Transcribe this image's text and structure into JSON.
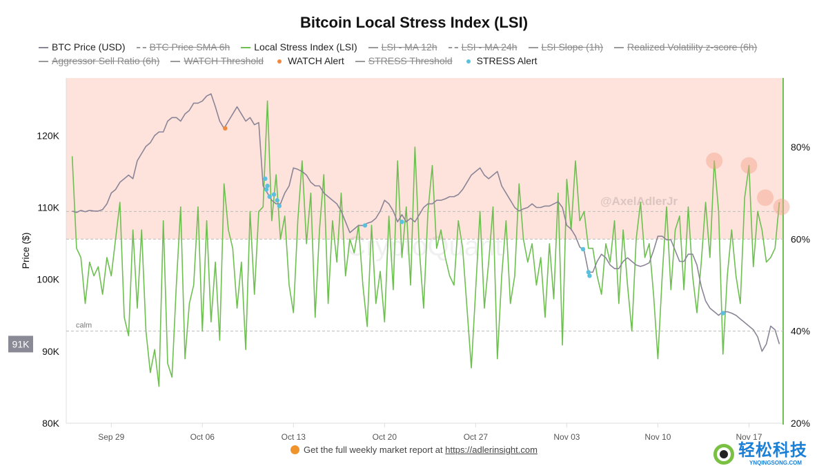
{
  "title": "Bitcoin Local Stress Index (LSI)",
  "legend": [
    {
      "label": "BTC Price (USD)",
      "type": "line",
      "color": "#8a8496",
      "hidden": false
    },
    {
      "label": "BTC Price SMA 6h",
      "type": "dash",
      "color": "#999999",
      "hidden": true
    },
    {
      "label": "Local Stress Index (LSI)",
      "type": "line",
      "color": "#6dbf4f",
      "hidden": false
    },
    {
      "label": "LSI - MA 12h",
      "type": "line",
      "color": "#999999",
      "hidden": true
    },
    {
      "label": "LSI - MA 24h",
      "type": "dash",
      "color": "#999999",
      "hidden": true
    },
    {
      "label": "LSI Slope (1h)",
      "type": "line",
      "color": "#999999",
      "hidden": true
    },
    {
      "label": "Realized Volatility z-score (6h)",
      "type": "line",
      "color": "#999999",
      "hidden": true
    },
    {
      "label": "Aggressor Sell Ratio (6h)",
      "type": "line",
      "color": "#999999",
      "hidden": true
    },
    {
      "label": "WATCH Threshold",
      "type": "line",
      "color": "#999999",
      "hidden": true
    },
    {
      "label": "WATCH Alert",
      "type": "dot",
      "color": "#f0883e",
      "hidden": false
    },
    {
      "label": "STRESS Threshold",
      "type": "line",
      "color": "#999999",
      "hidden": true
    },
    {
      "label": "STRESS Alert",
      "type": "dot",
      "color": "#5bc0de",
      "hidden": false
    }
  ],
  "chart_data": {
    "type": "line",
    "title": "Bitcoin Local Stress Index (LSI)",
    "ylabel": "Price ($)",
    "y_left": {
      "ticks": [
        "80K",
        "90K",
        "100K",
        "110K",
        "120K"
      ],
      "tick_values": [
        80,
        90,
        100,
        110,
        120
      ],
      "range": [
        80,
        128
      ],
      "unit": "K USD"
    },
    "y_right": {
      "ticks": [
        "20%",
        "40%",
        "60%",
        "80%"
      ],
      "tick_values": [
        20,
        40,
        60,
        80
      ],
      "range": [
        20,
        95
      ]
    },
    "x_ticks": [
      "Sep 29",
      "Oct 06",
      "Oct 13",
      "Oct 20",
      "Oct 27",
      "Nov 03",
      "Nov 10",
      "Nov 17"
    ],
    "xlim": [
      "Sep 25 13:00",
      "Nov 19 15:00"
    ],
    "sample_hours": [
      0,
      8,
      16
    ],
    "grid": false,
    "colors": {
      "price": "#8a8496",
      "lsi": "#6dbf4f",
      "watch": "#f0883e",
      "stress": "#5bc0de",
      "zone": "#fde3dc"
    },
    "stress_zone_from_pct": 60,
    "threshold_lines_pct": [
      66,
      60
    ],
    "calm": {
      "label": "calm",
      "pct": 40
    },
    "last_price_label": "91K",
    "days": [
      {
        "d": "Sep 26",
        "price": [
          109.5,
          109.3,
          109.6
        ],
        "lsi": [
          78,
          58,
          56
        ]
      },
      {
        "d": "Sep 27",
        "price": [
          109.4,
          109.6,
          109.5
        ],
        "lsi": [
          46,
          55,
          52
        ]
      },
      {
        "d": "Sep 28",
        "price": [
          109.5,
          109.7,
          110.5
        ],
        "lsi": [
          54,
          48,
          56
        ]
      },
      {
        "d": "Sep 29",
        "price": [
          112,
          112.5,
          113.5
        ],
        "lsi": [
          52,
          60,
          68
        ]
      },
      {
        "d": "Sep 30",
        "price": [
          114,
          114.5,
          114
        ],
        "lsi": [
          43,
          39,
          62
        ]
      },
      {
        "d": "Oct 01",
        "price": [
          116.5,
          117.5,
          118.5
        ],
        "lsi": [
          45,
          62,
          40
        ]
      },
      {
        "d": "Oct 02",
        "price": [
          119,
          120,
          120.5
        ],
        "lsi": [
          31,
          36,
          28
        ]
      },
      {
        "d": "Oct 03",
        "price": [
          120.5,
          122,
          122.5
        ],
        "lsi": [
          64,
          33,
          30
        ]
      },
      {
        "d": "Oct 04",
        "price": [
          122.5,
          122,
          123
        ],
        "lsi": [
          50,
          67,
          34
        ]
      },
      {
        "d": "Oct 05",
        "price": [
          123.5,
          124.5,
          124.5
        ],
        "lsi": [
          46,
          50,
          67
        ]
      },
      {
        "d": "Oct 06",
        "price": [
          124.8,
          125.5,
          125.8
        ],
        "lsi": [
          40,
          64,
          42
        ]
      },
      {
        "d": "Oct 07",
        "price": [
          124,
          122,
          121
        ],
        "lsi": [
          55,
          38,
          72
        ]
      },
      {
        "d": "Oct 08",
        "price": [
          122,
          123,
          124
        ],
        "lsi": [
          62,
          58,
          45
        ]
      },
      {
        "d": "Oct 09",
        "price": [
          123,
          122,
          122.5
        ],
        "lsi": [
          55,
          36,
          66
        ]
      },
      {
        "d": "Oct 10",
        "price": [
          121.5,
          121.8,
          113
        ],
        "lsi": [
          48,
          66,
          67
        ]
      },
      {
        "d": "Oct 11",
        "price": [
          112,
          111,
          110.5
        ],
        "lsi": [
          90,
          64,
          74
        ]
      },
      {
        "d": "Oct 12",
        "price": [
          110.5,
          112,
          113
        ],
        "lsi": [
          60,
          65,
          50
        ]
      },
      {
        "d": "Oct 13",
        "price": [
          115.5,
          115.3,
          115
        ],
        "lsi": [
          44,
          64,
          77
        ]
      },
      {
        "d": "Oct 14",
        "price": [
          114.5,
          113.5,
          113
        ],
        "lsi": [
          59,
          70,
          43
        ]
      },
      {
        "d": "Oct 15",
        "price": [
          113,
          112,
          111.5
        ],
        "lsi": [
          62,
          74,
          46
        ]
      },
      {
        "d": "Oct 16",
        "price": [
          111,
          110.5,
          109.5
        ],
        "lsi": [
          64,
          55,
          70
        ]
      },
      {
        "d": "Oct 17",
        "price": [
          108,
          106.5,
          107
        ],
        "lsi": [
          52,
          60,
          57
        ]
      },
      {
        "d": "Oct 18",
        "price": [
          107.5,
          107.5,
          107.8
        ],
        "lsi": [
          63,
          50,
          41
        ]
      },
      {
        "d": "Oct 19",
        "price": [
          108,
          108.5,
          109.5
        ],
        "lsi": [
          63,
          46,
          53
        ]
      },
      {
        "d": "Oct 20",
        "price": [
          111,
          110.5,
          109.5
        ],
        "lsi": [
          42,
          65,
          49
        ]
      },
      {
        "d": "Oct 21",
        "price": [
          108,
          109,
          108
        ],
        "lsi": [
          77,
          56,
          67
        ]
      },
      {
        "d": "Oct 22",
        "price": [
          108.5,
          108,
          109
        ],
        "lsi": [
          50,
          80,
          58
        ]
      },
      {
        "d": "Oct 23",
        "price": [
          110,
          110.5,
          110.5
        ],
        "lsi": [
          45,
          66,
          76
        ]
      },
      {
        "d": "Oct 24",
        "price": [
          111,
          111,
          111.2
        ],
        "lsi": [
          58,
          62,
          56
        ]
      },
      {
        "d": "Oct 25",
        "price": [
          111.5,
          111.5,
          111.8
        ],
        "lsi": [
          52,
          50,
          64
        ]
      },
      {
        "d": "Oct 26",
        "price": [
          112.5,
          113.5,
          114.5
        ],
        "lsi": [
          58,
          45,
          32
        ]
      },
      {
        "d": "Oct 27",
        "price": [
          115,
          115.5,
          114.5
        ],
        "lsi": [
          49,
          66,
          45
        ]
      },
      {
        "d": "Oct 28",
        "price": [
          114,
          114.5,
          115
        ],
        "lsi": [
          55,
          67,
          34
        ]
      },
      {
        "d": "Oct 29",
        "price": [
          113,
          112,
          111
        ],
        "lsi": [
          52,
          64,
          46
        ]
      },
      {
        "d": "Oct 30",
        "price": [
          110,
          109.5,
          109.8
        ],
        "lsi": [
          52,
          72,
          60
        ]
      },
      {
        "d": "Oct 31",
        "price": [
          110,
          110.5,
          110
        ],
        "lsi": [
          55,
          59,
          50
        ]
      },
      {
        "d": "Nov 01",
        "price": [
          110,
          110.2,
          110.2
        ],
        "lsi": [
          56,
          43,
          59
        ]
      },
      {
        "d": "Nov 02",
        "price": [
          110.5,
          110.8,
          110
        ],
        "lsi": [
          47,
          70,
          37
        ]
      },
      {
        "d": "Nov 03",
        "price": [
          107.5,
          107,
          106
        ],
        "lsi": [
          73,
          62,
          77
        ]
      },
      {
        "d": "Nov 04",
        "price": [
          104.5,
          104,
          101
        ],
        "lsi": [
          64,
          66,
          58
        ]
      },
      {
        "d": "Nov 05",
        "price": [
          101,
          102.5,
          103.5
        ],
        "lsi": [
          58,
          52,
          48
        ]
      },
      {
        "d": "Nov 06",
        "price": [
          103,
          102,
          101.5
        ],
        "lsi": [
          59,
          55,
          64
        ]
      },
      {
        "d": "Nov 07",
        "price": [
          101.5,
          102.5,
          103
        ],
        "lsi": [
          46,
          62,
          50
        ]
      },
      {
        "d": "Nov 08",
        "price": [
          102.5,
          102,
          101.8
        ],
        "lsi": [
          40,
          60,
          68
        ]
      },
      {
        "d": "Nov 09",
        "price": [
          102,
          102.3,
          104
        ],
        "lsi": [
          56,
          59,
          48
        ]
      },
      {
        "d": "Nov 10",
        "price": [
          106,
          106,
          105.5
        ],
        "lsi": [
          34,
          52,
          67
        ]
      },
      {
        "d": "Nov 11",
        "price": [
          105.5,
          104,
          102.5
        ],
        "lsi": [
          49,
          62,
          65
        ]
      },
      {
        "d": "Nov 12",
        "price": [
          102.5,
          103.5,
          103.5
        ],
        "lsi": [
          49,
          67,
          52
        ]
      },
      {
        "d": "Nov 13",
        "price": [
          102,
          99,
          97
        ],
        "lsi": [
          44,
          55,
          68
        ]
      },
      {
        "d": "Nov 14",
        "price": [
          96,
          95.5,
          95
        ],
        "lsi": [
          56,
          77,
          66
        ]
      },
      {
        "d": "Nov 15",
        "price": [
          95.5,
          95.5,
          95.3
        ],
        "lsi": [
          35,
          52,
          62
        ]
      },
      {
        "d": "Nov 16",
        "price": [
          95,
          94.5,
          94
        ],
        "lsi": [
          52,
          46,
          69
        ]
      },
      {
        "d": "Nov 17",
        "price": [
          93.5,
          93,
          92
        ],
        "lsi": [
          76,
          54,
          66
        ]
      },
      {
        "d": "Nov 18",
        "price": [
          90,
          91,
          93.5
        ],
        "lsi": [
          62,
          55,
          56
        ]
      },
      {
        "d": "Nov 19",
        "price": [
          93,
          91
        ],
        "lsi": [
          58,
          68
        ]
      }
    ],
    "watch_alerts": [
      {
        "t": "Oct 07 18:00",
        "price": 121
      }
    ],
    "stress_alerts": [
      {
        "t": "Oct 10 20:00",
        "price": 114
      },
      {
        "t": "Oct 10 22:00",
        "price": 112.5
      },
      {
        "t": "Oct 11 00:00",
        "price": 113
      },
      {
        "t": "Oct 11 04:00",
        "price": 111.5
      },
      {
        "t": "Oct 11 12:00",
        "price": 111.8
      },
      {
        "t": "Oct 11 18:00",
        "price": 111
      },
      {
        "t": "Oct 11 22:00",
        "price": 110.2
      },
      {
        "t": "Oct 18 12:00",
        "price": 107.5
      },
      {
        "t": "Oct 21 08:00",
        "price": 108
      },
      {
        "t": "Nov 04 06:00",
        "price": 104.2
      },
      {
        "t": "Nov 04 16:00",
        "price": 101
      },
      {
        "t": "Nov 04 18:00",
        "price": 100.5
      },
      {
        "t": "Nov 15 00:00",
        "price": 95.3
      }
    ],
    "highlighted_lsi_peaks": [
      {
        "t": "Nov 14 08:00",
        "lsi": 77
      },
      {
        "t": "Nov 17 00:00",
        "lsi": 76
      },
      {
        "t": "Nov 18 06:00",
        "lsi": 69
      },
      {
        "t": "Nov 19 12:00",
        "lsi": 67
      }
    ]
  },
  "watermarks": {
    "brand": "CryptoQuant",
    "author": "@AxelAdlerJr",
    "site_logo": "轻松科技",
    "site_logo_url": "YNQINGSONG.COM"
  },
  "footer": {
    "text": "Get the full weekly market report at",
    "link": "https://adlerinsight.com"
  }
}
